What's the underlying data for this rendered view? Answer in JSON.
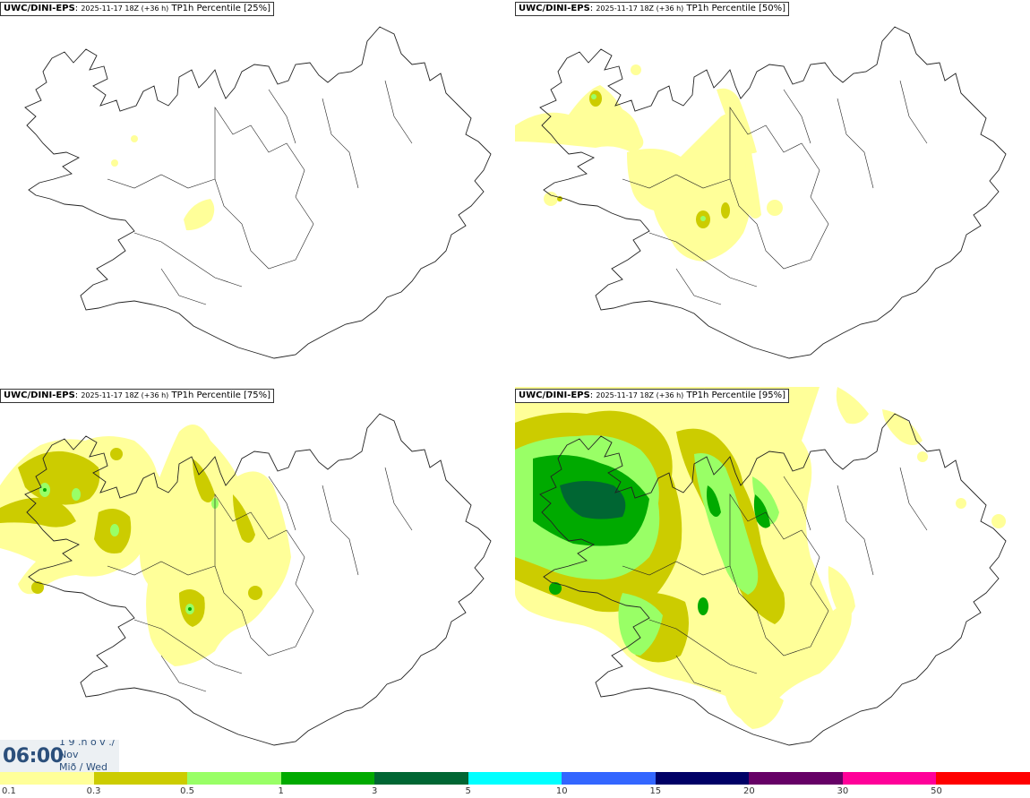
{
  "panels": [
    {
      "model": "UWC/DINI-EPS",
      "run": "2025-11-17 18Z (+36 h)",
      "field": "TP1h Percentile [25%]"
    },
    {
      "model": "UWC/DINI-EPS",
      "run": "2025-11-17 18Z (+36 h)",
      "field": "TP1h Percentile [50%]"
    },
    {
      "model": "UWC/DINI-EPS",
      "run": "2025-11-17 18Z (+36 h)",
      "field": "TP1h Percentile [75%]"
    },
    {
      "model": "UWC/DINI-EPS",
      "run": "2025-11-17 18Z (+36 h)",
      "field": "TP1h Percentile [95%]"
    }
  ],
  "valid_time": {
    "hour": "06:00",
    "line1": "1 9 .n ó v ./",
    "line2": "Nov",
    "line3": "Mið / Wed"
  },
  "legend": {
    "ticks": [
      "0.1",
      "0.3",
      "0.5",
      "1",
      "3",
      "5",
      "10",
      "15",
      "20",
      "30",
      "50"
    ],
    "colors": [
      "#ffff99",
      "#cccc00",
      "#99ff66",
      "#00aa00",
      "#006633",
      "#00ffff",
      "#3366ff",
      "#000066",
      "#660066",
      "#ff0099",
      "#ff0000"
    ]
  },
  "precip_colors": {
    "0.1": "#ffff99",
    "0.3": "#cccc00",
    "0.5": "#99ff66",
    "1": "#00aa00"
  }
}
